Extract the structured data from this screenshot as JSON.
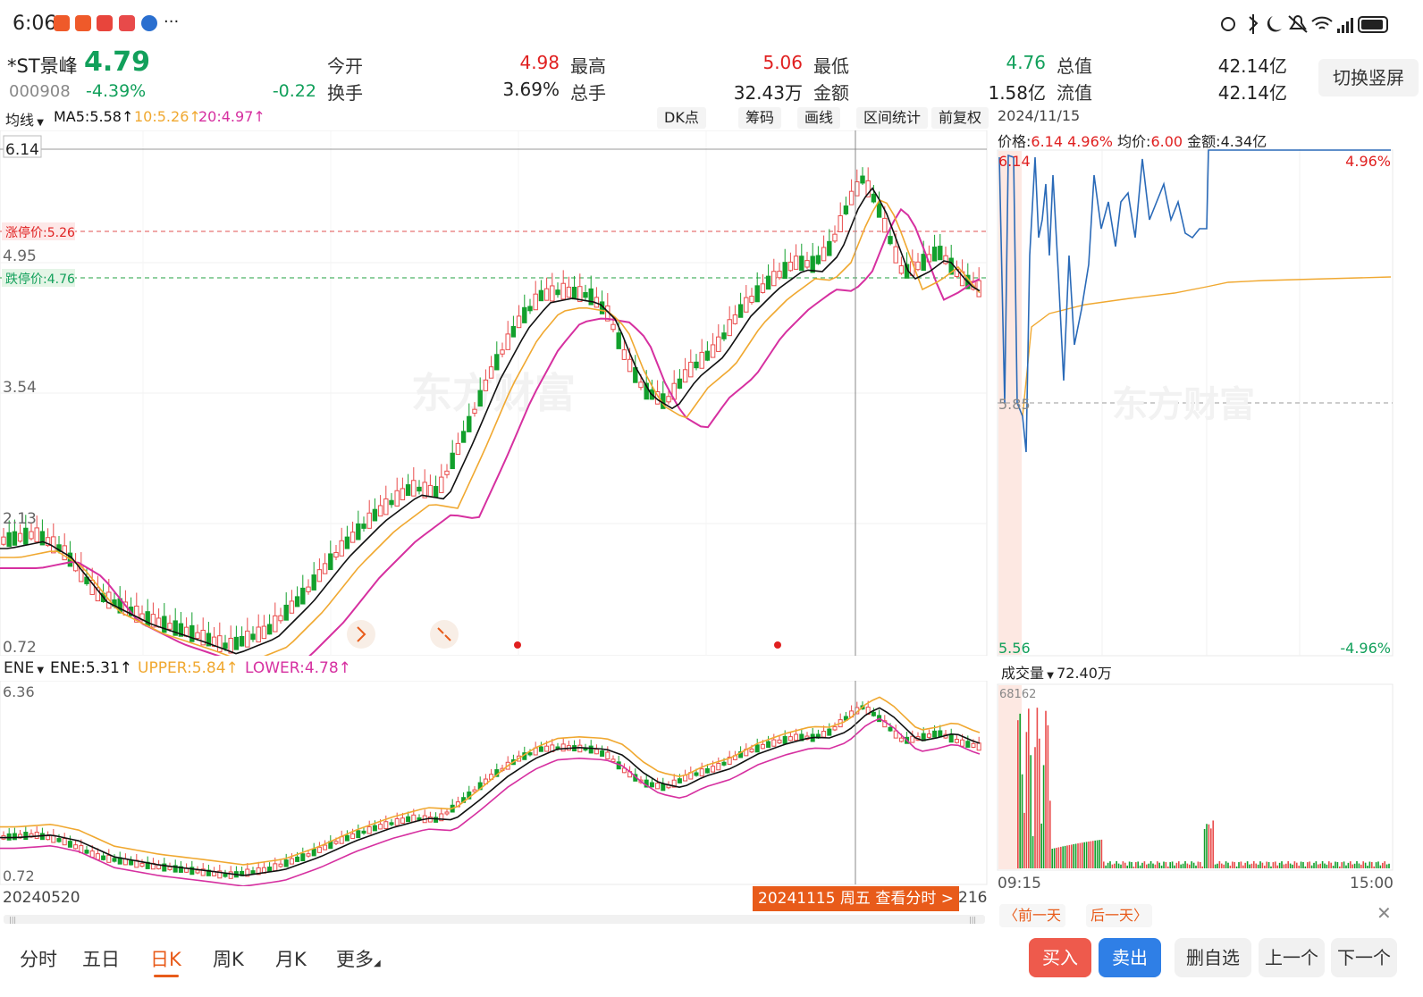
{
  "status_bar": {
    "time": "6:06",
    "more": "···"
  },
  "quote": {
    "name": "*ST景峰",
    "price": "4.79",
    "code": "000908",
    "change_pct": "-4.39%",
    "change": "-0.22",
    "open_label": "今开",
    "open": "4.98",
    "high_label": "最高",
    "high": "5.06",
    "low_label": "最低",
    "low": "4.76",
    "mcap_label": "总值",
    "mcap": "42.14亿",
    "turnover_label": "换手",
    "turnover": "3.69%",
    "volume_label": "总手",
    "volume": "32.43万",
    "amount_label": "金额",
    "amount": "1.58亿",
    "float_label": "流值",
    "float": "42.14亿",
    "switch_btn": "切换竖屏"
  },
  "kline": {
    "indicator_select": "均线",
    "ma5": "MA5:5.58↑",
    "ma10": "10:5.26↑",
    "ma20": "20:4.97↑",
    "tools": [
      "DK点",
      "筹码",
      "画线",
      "区间统计",
      "前复权"
    ],
    "y_labels": [
      "6.14",
      "4.95",
      "3.54",
      "2.13",
      "0.72"
    ],
    "limit_up": "涨停价:5.26",
    "limit_down": "跌停价:4.76",
    "watermark": "东方财富",
    "colors": {
      "up": "#e94b4b",
      "down": "#12a02c",
      "ma5": "#111111",
      "ma10": "#f0a830",
      "ma20": "#d630a0"
    }
  },
  "ene": {
    "select": "ENE",
    "ene": "ENE:5.31↑",
    "upper": "UPPER:5.84↑",
    "lower": "LOWER:4.78↑",
    "y_top": "6.36",
    "y_bottom": "0.72",
    "date_start": "20240520",
    "date_end_partial": "216",
    "selected_day": "20241115 周五 查看分时 >"
  },
  "intraday": {
    "date": "2024/11/15",
    "price_label": "价格:",
    "price": "6.14",
    "pct": "4.96%",
    "avg_label": "均价:",
    "avg": "6.00",
    "amount_label": "金额:",
    "amount": "4.34亿",
    "y_high": "6.14",
    "y_mid": "5.85",
    "y_low": "5.56",
    "pct_high": "4.96%",
    "pct_low": "-4.96%",
    "volume_select": "成交量",
    "volume_value": "72.40万",
    "volume_max": "68162",
    "time_start": "09:15",
    "time_end": "15:00",
    "prev_day": "前一天",
    "next_day": "后一天",
    "watermark": "东方财富"
  },
  "bottom_tabs": [
    "分时",
    "五日",
    "日K",
    "周K",
    "月K",
    "更多"
  ],
  "actions": {
    "buy": "买入",
    "sell": "卖出",
    "remove_watch": "删自选",
    "prev": "上一个",
    "next": "下一个"
  }
}
